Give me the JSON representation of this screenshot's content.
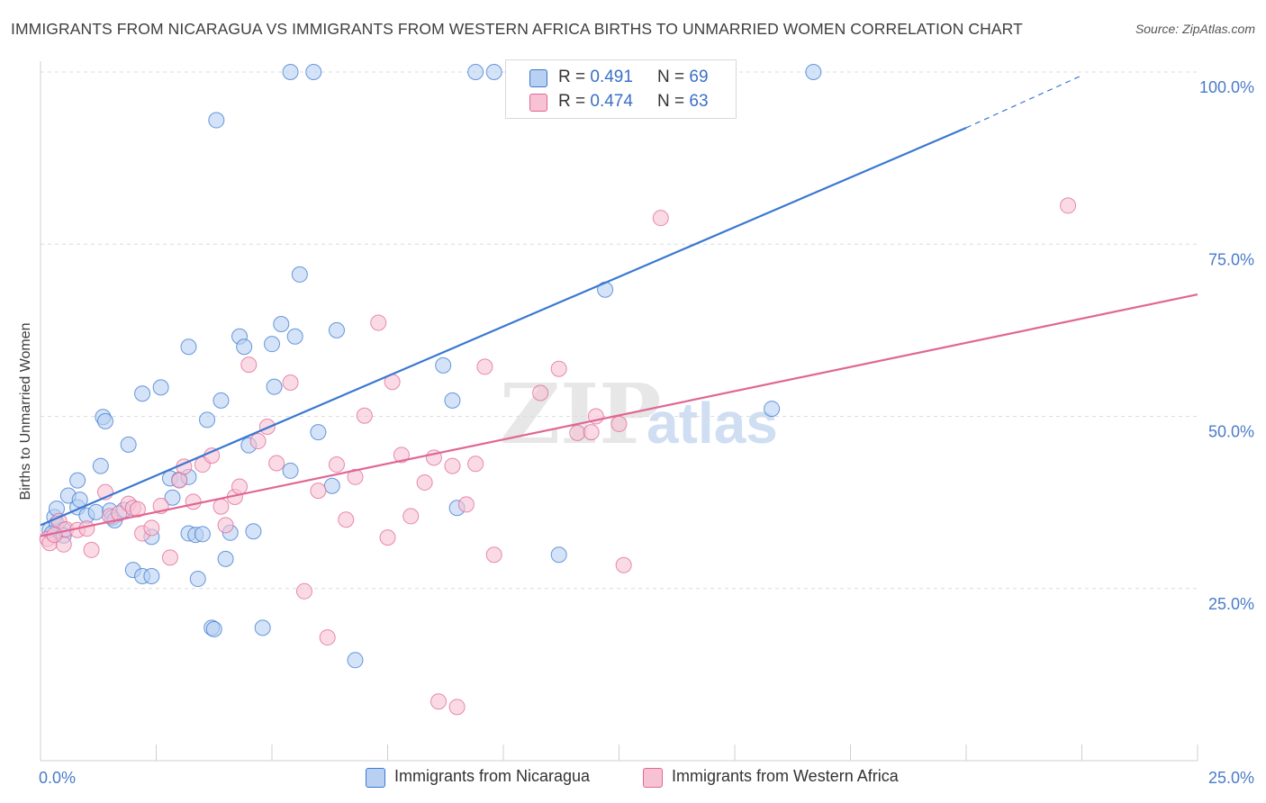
{
  "title": "IMMIGRANTS FROM NICARAGUA VS IMMIGRANTS FROM WESTERN AFRICA BIRTHS TO UNMARRIED WOMEN CORRELATION CHART",
  "source": "Source: ZipAtlas.com",
  "watermark": {
    "zip": "ZIP",
    "atlas": "atlas"
  },
  "colors": {
    "blue": "#3a78d0",
    "blue_fill": "#b8d0f2",
    "pink": "#e06694",
    "pink_fill": "#f7c3d4",
    "grid": "#dcdcdc",
    "tick_text": "#4a7cc9"
  },
  "legend": {
    "rows": [
      {
        "r_label": "R =",
        "r_value": "0.491",
        "n_label": "N =",
        "n_value": "69"
      },
      {
        "r_label": "R =",
        "r_value": "0.474",
        "n_label": "N =",
        "n_value": "63"
      }
    ]
  },
  "bottom_legend": {
    "series1": "Immigrants from Nicaragua",
    "series2": "Immigrants from Western Africa"
  },
  "chart_data": {
    "type": "scatter",
    "title": "IMMIGRANTS FROM NICARAGUA VS IMMIGRANTS FROM WESTERN AFRICA BIRTHS TO UNMARRIED WOMEN CORRELATION CHART",
    "xlabel": "",
    "ylabel": "Births to Unmarried Women",
    "xlim": [
      0,
      25
    ],
    "ylim": [
      0,
      100
    ],
    "x_tick_labels": [
      "0.0%",
      "25.0%"
    ],
    "y_tick_labels": [
      "25.0%",
      "50.0%",
      "75.0%",
      "100.0%"
    ],
    "y_ticks": [
      25,
      50,
      75,
      100
    ],
    "grid": true,
    "legend_position": "top-center",
    "series": [
      {
        "name": "Immigrants from Nicaragua",
        "color": "#3a78d0",
        "r": 0.491,
        "n": 69,
        "trend": {
          "x0": 0.0,
          "y0": 34.2,
          "x1": 20.0,
          "y1": 91.9,
          "dashed_to_x": 22.5,
          "dashed_to_y": 99.5
        },
        "points": [
          [
            0.2,
            33.5
          ],
          [
            0.3,
            35.4
          ],
          [
            0.35,
            34.4
          ],
          [
            0.5,
            33.5
          ],
          [
            0.35,
            36.6
          ],
          [
            0.6,
            38.5
          ],
          [
            0.8,
            36.8
          ],
          [
            0.85,
            37.9
          ],
          [
            0.8,
            40.7
          ],
          [
            1.0,
            35.6
          ],
          [
            1.2,
            36.1
          ],
          [
            1.5,
            36.3
          ],
          [
            1.55,
            35.3
          ],
          [
            1.6,
            34.9
          ],
          [
            1.3,
            42.8
          ],
          [
            1.35,
            49.9
          ],
          [
            1.4,
            49.3
          ],
          [
            1.9,
            45.9
          ],
          [
            2.2,
            53.3
          ],
          [
            2.6,
            54.2
          ],
          [
            2.8,
            41.0
          ],
          [
            2.85,
            38.2
          ],
          [
            2.4,
            32.5
          ],
          [
            2.0,
            27.7
          ],
          [
            2.2,
            26.8
          ],
          [
            2.4,
            26.8
          ],
          [
            3.0,
            40.8
          ],
          [
            3.2,
            41.2
          ],
          [
            3.2,
            33.0
          ],
          [
            3.35,
            32.8
          ],
          [
            3.5,
            32.9
          ],
          [
            3.2,
            60.1
          ],
          [
            3.6,
            49.5
          ],
          [
            3.9,
            52.3
          ],
          [
            3.4,
            26.4
          ],
          [
            4.0,
            29.3
          ],
          [
            3.7,
            19.3
          ],
          [
            3.75,
            19.1
          ],
          [
            4.1,
            33.1
          ],
          [
            4.3,
            61.6
          ],
          [
            4.4,
            60.1
          ],
          [
            4.5,
            45.8
          ],
          [
            4.6,
            33.3
          ],
          [
            4.8,
            19.3
          ],
          [
            5.0,
            60.5
          ],
          [
            5.05,
            54.3
          ],
          [
            5.2,
            63.4
          ],
          [
            5.4,
            42.1
          ],
          [
            5.5,
            61.6
          ],
          [
            5.6,
            70.6
          ],
          [
            6.0,
            47.7
          ],
          [
            6.3,
            39.9
          ],
          [
            6.4,
            62.5
          ],
          [
            6.8,
            14.6
          ],
          [
            5.4,
            100.0
          ],
          [
            5.9,
            100.0
          ],
          [
            9.4,
            100.0
          ],
          [
            9.8,
            100.0
          ],
          [
            16.7,
            100.0
          ],
          [
            3.8,
            93.0
          ],
          [
            8.7,
            57.4
          ],
          [
            8.9,
            52.3
          ],
          [
            9.0,
            36.7
          ],
          [
            11.2,
            29.9
          ],
          [
            12.2,
            68.4
          ],
          [
            15.8,
            51.1
          ],
          [
            0.25,
            33.0
          ],
          [
            0.5,
            32.7
          ],
          [
            1.8,
            36.4
          ]
        ]
      },
      {
        "name": "Immigrants from Western Africa",
        "color": "#e06694",
        "r": 0.474,
        "n": 63,
        "trend": {
          "x0": 0.0,
          "y0": 32.6,
          "x1": 25.0,
          "y1": 67.7
        },
        "points": [
          [
            0.15,
            32.2
          ],
          [
            0.2,
            31.6
          ],
          [
            0.4,
            34.8
          ],
          [
            0.5,
            31.4
          ],
          [
            0.55,
            33.6
          ],
          [
            0.8,
            33.5
          ],
          [
            1.0,
            33.7
          ],
          [
            1.1,
            30.6
          ],
          [
            1.4,
            39.0
          ],
          [
            1.5,
            35.5
          ],
          [
            1.7,
            35.9
          ],
          [
            1.9,
            37.3
          ],
          [
            2.0,
            36.7
          ],
          [
            2.1,
            36.5
          ],
          [
            2.2,
            33.0
          ],
          [
            2.4,
            33.8
          ],
          [
            2.6,
            37.0
          ],
          [
            2.8,
            29.5
          ],
          [
            3.0,
            40.7
          ],
          [
            3.1,
            42.7
          ],
          [
            3.3,
            37.6
          ],
          [
            3.5,
            43.0
          ],
          [
            3.7,
            44.3
          ],
          [
            3.9,
            36.9
          ],
          [
            4.0,
            34.2
          ],
          [
            4.2,
            38.3
          ],
          [
            4.3,
            39.8
          ],
          [
            4.5,
            57.5
          ],
          [
            4.7,
            46.4
          ],
          [
            4.9,
            48.5
          ],
          [
            5.1,
            43.2
          ],
          [
            5.4,
            54.9
          ],
          [
            5.7,
            24.6
          ],
          [
            6.0,
            39.2
          ],
          [
            6.2,
            17.9
          ],
          [
            6.4,
            43.0
          ],
          [
            6.6,
            35.0
          ],
          [
            6.8,
            41.2
          ],
          [
            7.0,
            50.1
          ],
          [
            7.3,
            63.6
          ],
          [
            7.5,
            32.4
          ],
          [
            7.6,
            55.0
          ],
          [
            7.8,
            44.4
          ],
          [
            8.0,
            35.5
          ],
          [
            8.3,
            40.4
          ],
          [
            8.5,
            44.0
          ],
          [
            8.6,
            8.6
          ],
          [
            8.9,
            42.8
          ],
          [
            9.0,
            7.8
          ],
          [
            9.2,
            37.2
          ],
          [
            9.4,
            43.1
          ],
          [
            9.6,
            57.2
          ],
          [
            9.8,
            29.9
          ],
          [
            10.8,
            53.4
          ],
          [
            11.2,
            56.9
          ],
          [
            11.6,
            47.6
          ],
          [
            11.9,
            47.7
          ],
          [
            12.0,
            50.0
          ],
          [
            12.5,
            48.9
          ],
          [
            12.6,
            28.4
          ],
          [
            13.4,
            78.8
          ],
          [
            22.2,
            80.6
          ],
          [
            0.3,
            32.8
          ]
        ]
      }
    ]
  }
}
